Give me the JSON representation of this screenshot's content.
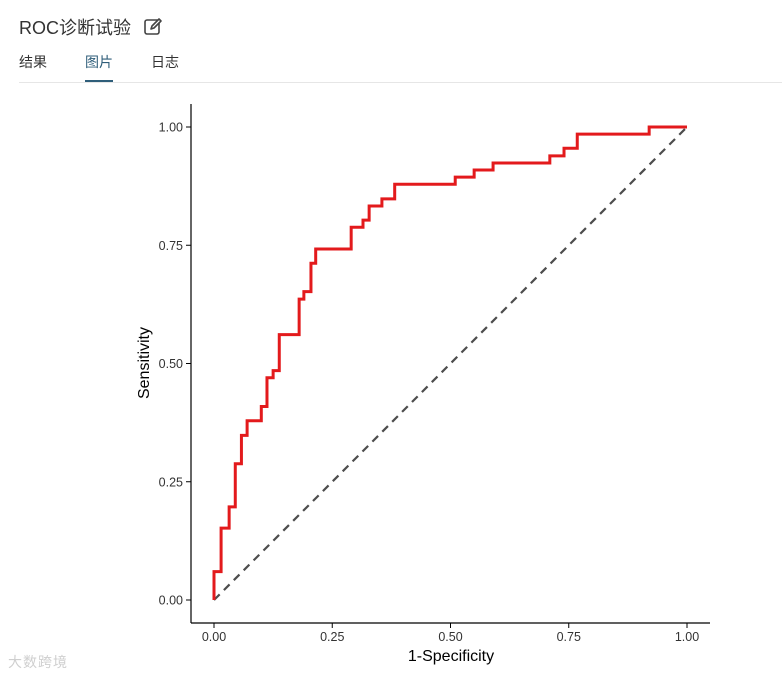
{
  "header": {
    "title": "ROC诊断试验",
    "edit_icon": "pencil-edit-icon"
  },
  "tabs": [
    {
      "label": "结果",
      "active": false
    },
    {
      "label": "图片",
      "active": true
    },
    {
      "label": "日志",
      "active": false
    }
  ],
  "chart_data": {
    "type": "line",
    "xlabel": "1-Specificity",
    "ylabel": "Sensitivity",
    "xlim": [
      0,
      1
    ],
    "ylim": [
      0,
      1
    ],
    "xticks": [
      "0.00",
      "0.25",
      "0.50",
      "0.75",
      "1.00"
    ],
    "yticks": [
      "0.00",
      "0.25",
      "0.50",
      "0.75",
      "1.00"
    ],
    "grid": false,
    "series": [
      {
        "style": "solid",
        "color": "#e31a1c",
        "x": [
          0,
          0,
          0.015,
          0.015,
          0.032,
          0.032,
          0.045,
          0.045,
          0.058,
          0.058,
          0.07,
          0.07,
          0.1,
          0.1,
          0.112,
          0.112,
          0.125,
          0.125,
          0.138,
          0.138,
          0.18,
          0.18,
          0.19,
          0.19,
          0.205,
          0.205,
          0.215,
          0.215,
          0.29,
          0.29,
          0.315,
          0.315,
          0.328,
          0.328,
          0.355,
          0.355,
          0.382,
          0.382,
          0.51,
          0.51,
          0.55,
          0.55,
          0.59,
          0.59,
          0.71,
          0.71,
          0.74,
          0.74,
          0.768,
          0.768,
          0.92,
          0.92,
          1
        ],
        "y": [
          0,
          0.06,
          0.06,
          0.152,
          0.152,
          0.197,
          0.197,
          0.288,
          0.288,
          0.348,
          0.348,
          0.379,
          0.379,
          0.409,
          0.409,
          0.47,
          0.47,
          0.485,
          0.485,
          0.561,
          0.561,
          0.636,
          0.636,
          0.652,
          0.652,
          0.712,
          0.712,
          0.742,
          0.742,
          0.788,
          0.788,
          0.803,
          0.803,
          0.833,
          0.833,
          0.848,
          0.848,
          0.879,
          0.879,
          0.894,
          0.894,
          0.909,
          0.909,
          0.924,
          0.924,
          0.939,
          0.939,
          0.955,
          0.955,
          0.985,
          0.985,
          1,
          1
        ]
      },
      {
        "style": "dashed",
        "color": "#4d4d4d",
        "x": [
          0,
          1
        ],
        "y": [
          0,
          1
        ]
      }
    ]
  },
  "watermark": "大数跨境"
}
